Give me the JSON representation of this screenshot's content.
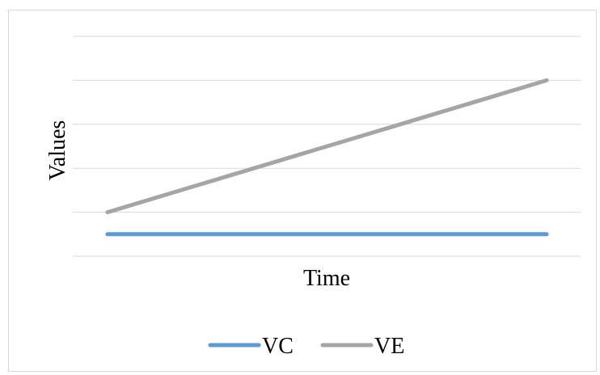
{
  "chart_data": {
    "type": "line",
    "title": "",
    "xlabel": "Time",
    "ylabel": "Values",
    "x": [
      0,
      1
    ],
    "ylim": [
      0,
      5
    ],
    "grid": true,
    "y_tick_labels_shown": false,
    "x_tick_labels_shown": false,
    "legend_position": "bottom",
    "series": [
      {
        "name": "VC",
        "color": "#5b9bd5",
        "values": [
          0.5,
          0.5
        ]
      },
      {
        "name": "VE",
        "color": "#a5a5a5",
        "values": [
          1.0,
          4.0
        ]
      }
    ]
  }
}
